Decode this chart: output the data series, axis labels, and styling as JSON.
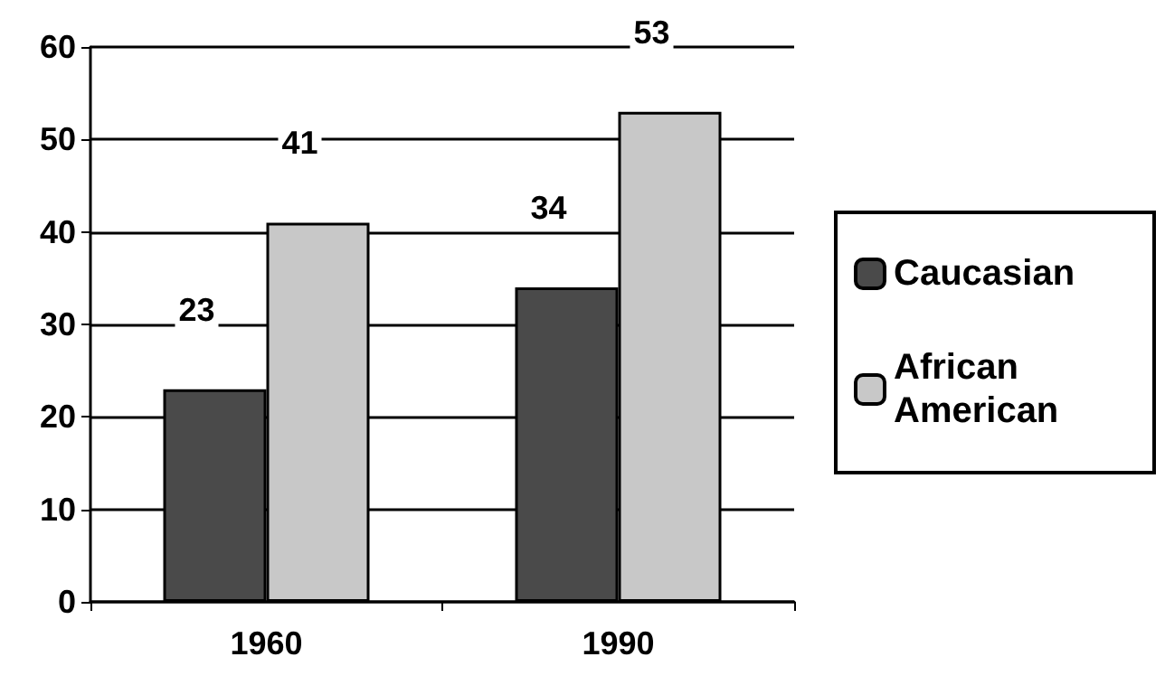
{
  "chart_data": {
    "type": "bar",
    "categories": [
      "1960",
      "1990"
    ],
    "series": [
      {
        "name": "Caucasian",
        "color": "#4a4a4a",
        "values": [
          23,
          34
        ]
      },
      {
        "name": "African American",
        "color": "#c8c8c8",
        "values": [
          41,
          53
        ]
      }
    ],
    "ylim": [
      0,
      60
    ],
    "yticks": [
      0,
      10,
      20,
      30,
      40,
      50,
      60
    ],
    "grid": "y",
    "legend": "right",
    "data_labels": true
  }
}
